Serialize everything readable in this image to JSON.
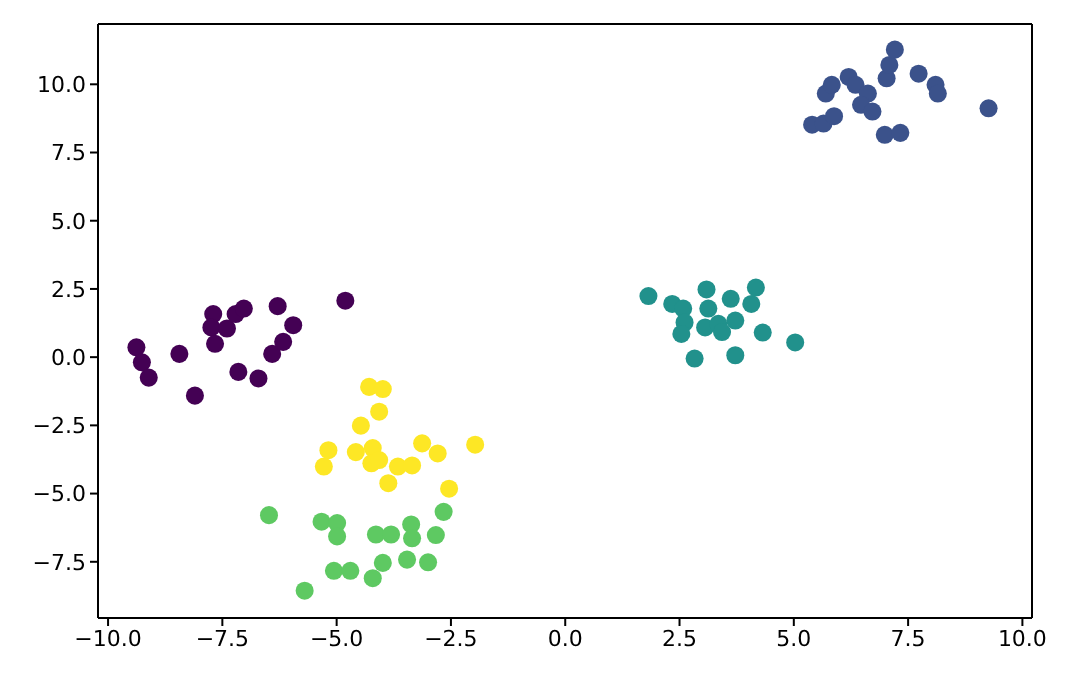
{
  "chart_data": {
    "type": "scatter",
    "marker": "circle",
    "grid": false,
    "legend": false,
    "xlim": [
      -10.22,
      10.21
    ],
    "ylim": [
      -9.56,
      12.21
    ],
    "xticks": [
      {
        "value": -10,
        "label": "−10.0"
      },
      {
        "value": -7.5,
        "label": "−7.5"
      },
      {
        "value": -5,
        "label": "−5.0"
      },
      {
        "value": -2.5,
        "label": "−2.5"
      },
      {
        "value": 0,
        "label": "0.0"
      },
      {
        "value": 2.5,
        "label": "2.5"
      },
      {
        "value": 5,
        "label": "5.0"
      },
      {
        "value": 7.5,
        "label": "7.5"
      },
      {
        "value": 10,
        "label": "10.0"
      }
    ],
    "yticks": [
      {
        "value": -7.5,
        "label": "−7.5"
      },
      {
        "value": -5,
        "label": "−5.0"
      },
      {
        "value": -2.5,
        "label": "−2.5"
      },
      {
        "value": 0,
        "label": "0.0"
      },
      {
        "value": 2.5,
        "label": "2.5"
      },
      {
        "value": 5,
        "label": "5.0"
      },
      {
        "value": 7.5,
        "label": "7.5"
      },
      {
        "value": 10,
        "label": "10.0"
      }
    ],
    "series": [
      {
        "color": "#440154",
        "x": [
          -9.38,
          -9.26,
          -9.11,
          -8.44,
          -8.1,
          -7.7,
          -7.74,
          -7.66,
          -7.4,
          -7.21,
          -7.03,
          -7.15,
          -6.71,
          -6.41,
          -6.29,
          -6.17,
          -5.95,
          -4.81
        ],
        "values": [
          0.36,
          -0.19,
          -0.75,
          0.12,
          -1.41,
          1.58,
          1.09,
          0.49,
          1.05,
          1.58,
          1.78,
          -0.54,
          -0.78,
          0.12,
          1.87,
          0.56,
          1.17,
          2.07
        ]
      },
      {
        "color": "#3b528b",
        "x": [
          5.4,
          5.65,
          5.88,
          5.7,
          5.83,
          6.2,
          6.35,
          6.62,
          6.47,
          6.72,
          6.99,
          7.33,
          7.03,
          7.09,
          7.21,
          7.73,
          8.1,
          8.15,
          9.26
        ],
        "values": [
          8.52,
          8.56,
          8.83,
          9.66,
          9.98,
          10.27,
          9.98,
          9.66,
          9.25,
          9.0,
          8.15,
          8.22,
          10.22,
          10.71,
          11.27,
          10.39,
          9.98,
          9.66,
          9.12
        ]
      },
      {
        "color": "#21918c",
        "x": [
          1.82,
          2.34,
          2.58,
          2.61,
          2.54,
          3.09,
          3.13,
          3.06,
          3.35,
          3.43,
          3.62,
          3.72,
          4.07,
          4.17,
          4.32,
          2.83,
          3.72,
          5.03
        ],
        "values": [
          2.24,
          1.95,
          1.78,
          1.27,
          0.85,
          2.48,
          1.78,
          1.09,
          1.22,
          0.92,
          2.14,
          1.34,
          1.95,
          2.55,
          0.9,
          -0.05,
          0.07,
          0.54
        ]
      },
      {
        "color": "#5ec962",
        "x": [
          -6.48,
          -5.33,
          -4.99,
          -4.99,
          -4.14,
          -3.81,
          -3.37,
          -3.35,
          -2.83,
          -2.66,
          -5.06,
          -4.7,
          -4.21,
          -3.99,
          -3.46,
          -3.0,
          -5.7
        ],
        "values": [
          -5.79,
          -6.03,
          -6.08,
          -6.57,
          -6.5,
          -6.5,
          -6.13,
          -6.64,
          -6.52,
          -5.67,
          -7.83,
          -7.83,
          -8.1,
          -7.54,
          -7.42,
          -7.52,
          -8.56
        ]
      },
      {
        "color": "#fde725",
        "x": [
          -4.29,
          -3.99,
          -4.07,
          -4.47,
          -5.18,
          -5.28,
          -4.58,
          -4.21,
          -4.24,
          -3.92,
          -3.87,
          -3.66,
          -3.35,
          -3.13,
          -2.79,
          -2.54,
          -1.97,
          -4.07
        ],
        "values": [
          -1.09,
          -1.17,
          -2.0,
          -2.51,
          -3.41,
          -4.01,
          -3.48,
          -3.33,
          -3.89,
          null,
          -4.62,
          -4.01,
          -3.97,
          -3.16,
          -3.53,
          -4.82,
          -3.21,
          -3.77
        ]
      }
    ]
  }
}
